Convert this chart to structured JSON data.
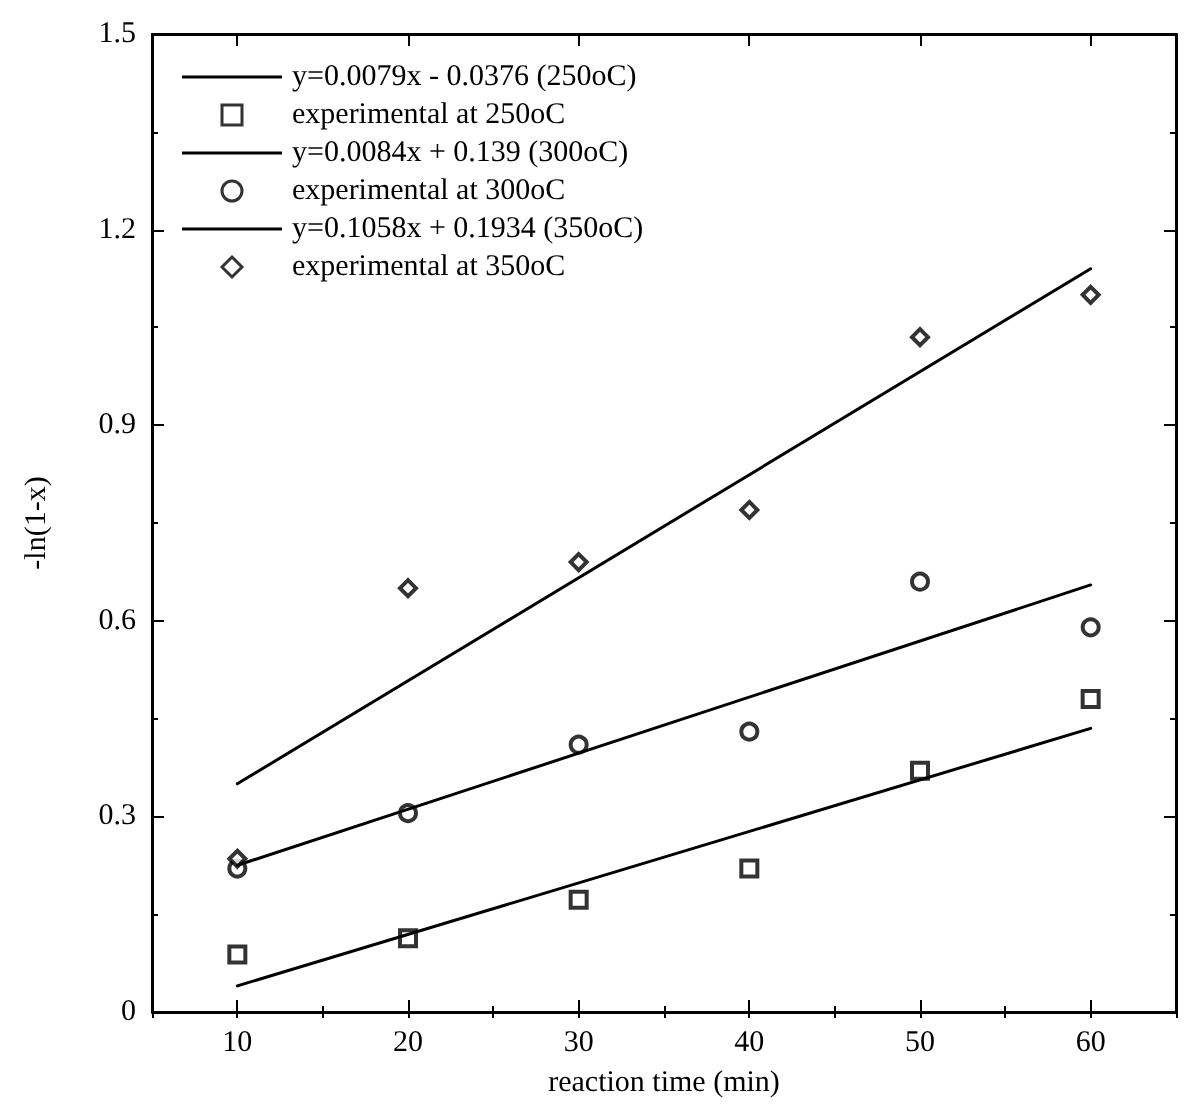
{
  "chart_data": {
    "type": "scatter",
    "xlabel": "reaction time (min)",
    "ylabel": "-ln(1-x)",
    "xlim": [
      5,
      65
    ],
    "xticks": [
      10,
      20,
      30,
      40,
      50,
      60
    ],
    "ylim": [
      0,
      1.5
    ],
    "yticks": [
      0,
      0.3,
      0.6,
      0.9,
      1.2,
      1.5
    ],
    "grid": false,
    "legend": "top left",
    "series": [
      {
        "name": "y=0.0079x - 0.0376 (250oC)",
        "type": "line",
        "color": "#000000",
        "marker": "none",
        "x": [
          10,
          60
        ],
        "values": [
          0.04,
          0.435
        ]
      },
      {
        "name": "experimental at 250oC",
        "type": "scatter",
        "color": "#000000",
        "marker": "square",
        "x": [
          10,
          20,
          30,
          40,
          50,
          60
        ],
        "values": [
          0.088,
          0.113,
          0.172,
          0.22,
          0.37,
          0.48
        ]
      },
      {
        "name": "y=0.0084x + 0.139 (300oC)",
        "type": "line",
        "color": "#000000",
        "marker": "none",
        "x": [
          10,
          60
        ],
        "values": [
          0.225,
          0.655
        ]
      },
      {
        "name": "experimental at 300oC",
        "type": "scatter",
        "color": "#000000",
        "marker": "circle",
        "x": [
          10,
          20,
          30,
          40,
          50,
          60
        ],
        "values": [
          0.22,
          0.305,
          0.41,
          0.43,
          0.66,
          0.59
        ]
      },
      {
        "name": "y=0.1058x + 0.1934 (350oC)",
        "type": "line",
        "color": "#000000",
        "marker": "none",
        "x": [
          10,
          60
        ],
        "values": [
          0.35,
          1.14
        ]
      },
      {
        "name": "experimental at 350oC",
        "type": "scatter",
        "color": "#000000",
        "marker": "diamond",
        "x": [
          10,
          20,
          30,
          40,
          50,
          60
        ],
        "values": [
          0.235,
          0.65,
          0.69,
          0.77,
          1.035,
          1.1
        ]
      }
    ]
  }
}
